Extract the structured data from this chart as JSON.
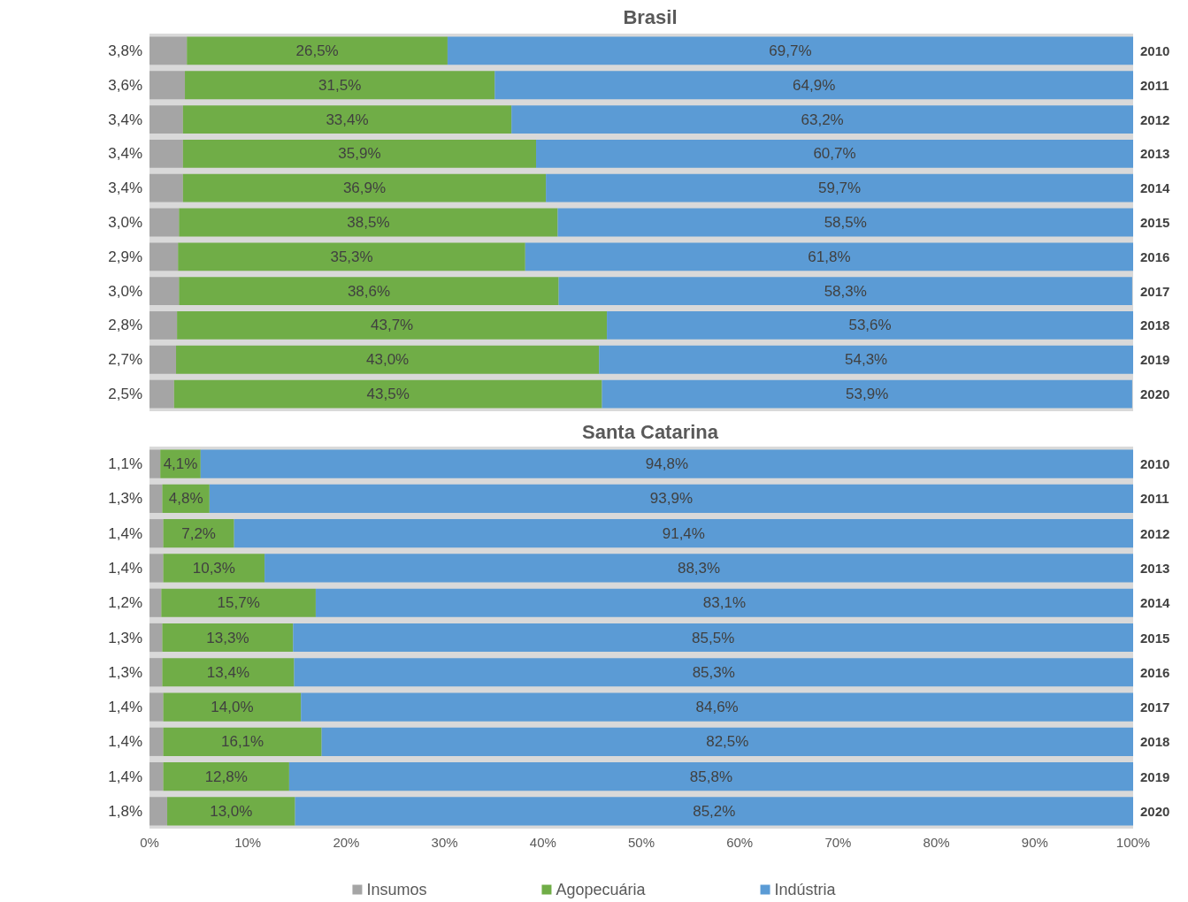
{
  "chart_data": [
    {
      "type": "bar",
      "title": "Brasil",
      "orientation": "horizontal",
      "stacked": true,
      "tick_labels": "y",
      "grid": false,
      "categories": [
        "2010",
        "2011",
        "2012",
        "2013",
        "2014",
        "2015",
        "2016",
        "2017",
        "2018",
        "2019",
        "2020"
      ],
      "xlim": [
        0,
        100
      ],
      "series": [
        {
          "color": "#a5a5a5",
          "values": [
            3.8,
            3.6,
            3.4,
            3.4,
            3.4,
            3.0,
            2.9,
            3.0,
            2.8,
            2.7,
            2.5
          ],
          "value_labels": [
            "3,8%",
            "3,6%",
            "3,4%",
            "3,4%",
            "3,4%",
            "3,0%",
            "2,9%",
            "3,0%",
            "2,8%",
            "2,7%",
            "2,5%"
          ]
        },
        {
          "color": "#70ad47",
          "values": [
            26.5,
            31.5,
            33.4,
            35.9,
            36.9,
            38.5,
            35.3,
            38.6,
            43.7,
            43.0,
            43.5
          ],
          "value_labels": [
            "26,5%",
            "31,5%",
            "33,4%",
            "35,9%",
            "36,9%",
            "38,5%",
            "35,3%",
            "38,6%",
            "43,7%",
            "43,0%",
            "43,5%"
          ]
        },
        {
          "color": "#5b9bd5",
          "values": [
            69.7,
            64.9,
            63.2,
            60.7,
            59.7,
            58.5,
            61.8,
            58.3,
            53.6,
            54.3,
            53.9
          ],
          "value_labels": [
            "69,7%",
            "64,9%",
            "63,2%",
            "60,7%",
            "59,7%",
            "58,5%",
            "61,8%",
            "58,3%",
            "53,6%",
            "54,3%",
            "53,9%"
          ]
        }
      ]
    },
    {
      "type": "bar",
      "title": "Santa Catarina",
      "orientation": "horizontal",
      "stacked": true,
      "legend": "bottom",
      "grid": false,
      "categories": [
        "2010",
        "2011",
        "2012",
        "2013",
        "2014",
        "2015",
        "2016",
        "2017",
        "2018",
        "2019",
        "2020"
      ],
      "xlim": [
        0,
        100
      ],
      "xticks": [
        {
          "value": 0,
          "label": "0%"
        },
        {
          "value": 10,
          "label": "10%"
        },
        {
          "value": 20,
          "label": "20%"
        },
        {
          "value": 30,
          "label": "30%"
        },
        {
          "value": 40,
          "label": "40%"
        },
        {
          "value": 50,
          "label": "50%"
        },
        {
          "value": 60,
          "label": "60%"
        },
        {
          "value": 70,
          "label": "70%"
        },
        {
          "value": 80,
          "label": "80%"
        },
        {
          "value": 90,
          "label": "90%"
        },
        {
          "value": 100,
          "label": "100%"
        }
      ],
      "series": [
        {
          "name": "Insumos",
          "color": "#a5a5a5",
          "values": [
            1.1,
            1.3,
            1.4,
            1.4,
            1.2,
            1.3,
            1.3,
            1.4,
            1.4,
            1.4,
            1.8
          ],
          "value_labels": [
            "1,1%",
            "1,3%",
            "1,4%",
            "1,4%",
            "1,2%",
            "1,3%",
            "1,3%",
            "1,4%",
            "1,4%",
            "1,4%",
            "1,8%"
          ]
        },
        {
          "name": "Agopecuária",
          "color": "#70ad47",
          "values": [
            4.1,
            4.8,
            7.2,
            10.3,
            15.7,
            13.3,
            13.4,
            14.0,
            16.1,
            12.8,
            13.0
          ],
          "value_labels": [
            "4,1%",
            "4,8%",
            "7,2%",
            "10,3%",
            "15,7%",
            "13,3%",
            "13,4%",
            "14,0%",
            "16,1%",
            "12,8%",
            "13,0%"
          ]
        },
        {
          "name": "Indústria",
          "color": "#5b9bd5",
          "values": [
            94.8,
            93.9,
            91.4,
            88.3,
            83.1,
            85.5,
            85.3,
            84.6,
            82.5,
            85.8,
            85.2
          ],
          "value_labels": [
            "94,8%",
            "93,9%",
            "91,4%",
            "88,3%",
            "83,1%",
            "85,5%",
            "85,3%",
            "84,6%",
            "82,5%",
            "85,8%",
            "85,2%"
          ]
        }
      ]
    }
  ]
}
